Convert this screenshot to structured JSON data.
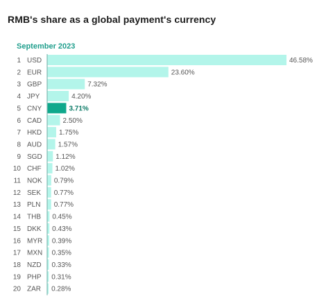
{
  "title": "RMB's share as a global payment's currency",
  "chart_data": {
    "type": "bar",
    "orientation": "horizontal",
    "subtitle": "September 2023",
    "ranks": [
      "1",
      "2",
      "3",
      "4",
      "5",
      "6",
      "7",
      "8",
      "9",
      "10",
      "11",
      "12",
      "13",
      "14",
      "15",
      "16",
      "17",
      "18",
      "19",
      "20"
    ],
    "categories": [
      "USD",
      "EUR",
      "GBP",
      "JPY",
      "CNY",
      "CAD",
      "HKD",
      "AUD",
      "SGD",
      "CHF",
      "NOK",
      "SEK",
      "PLN",
      "THB",
      "DKK",
      "MYR",
      "MXN",
      "NZD",
      "PHP",
      "ZAR"
    ],
    "values": [
      46.58,
      23.6,
      7.32,
      4.2,
      3.71,
      2.5,
      1.75,
      1.57,
      1.12,
      1.02,
      0.79,
      0.77,
      0.77,
      0.45,
      0.43,
      0.39,
      0.35,
      0.33,
      0.31,
      0.28
    ],
    "labels": [
      "46.58%",
      "23.60%",
      "7.32%",
      "4.20%",
      "3.71%",
      "2.50%",
      "1.75%",
      "1.57%",
      "1.12%",
      "1.02%",
      "0.79%",
      "0.77%",
      "0.77%",
      "0.45%",
      "0.43%",
      "0.39%",
      "0.35%",
      "0.33%",
      "0.31%",
      "0.28%"
    ],
    "highlight": "CNY",
    "bar_color": "#b3f5ea",
    "highlight_color": "#0fa88c",
    "highlight_label_color": "#0b7a66",
    "axis_color": "#7fb8b0",
    "xlim": [
      0,
      46.58
    ],
    "grid": false,
    "legend": "none"
  }
}
